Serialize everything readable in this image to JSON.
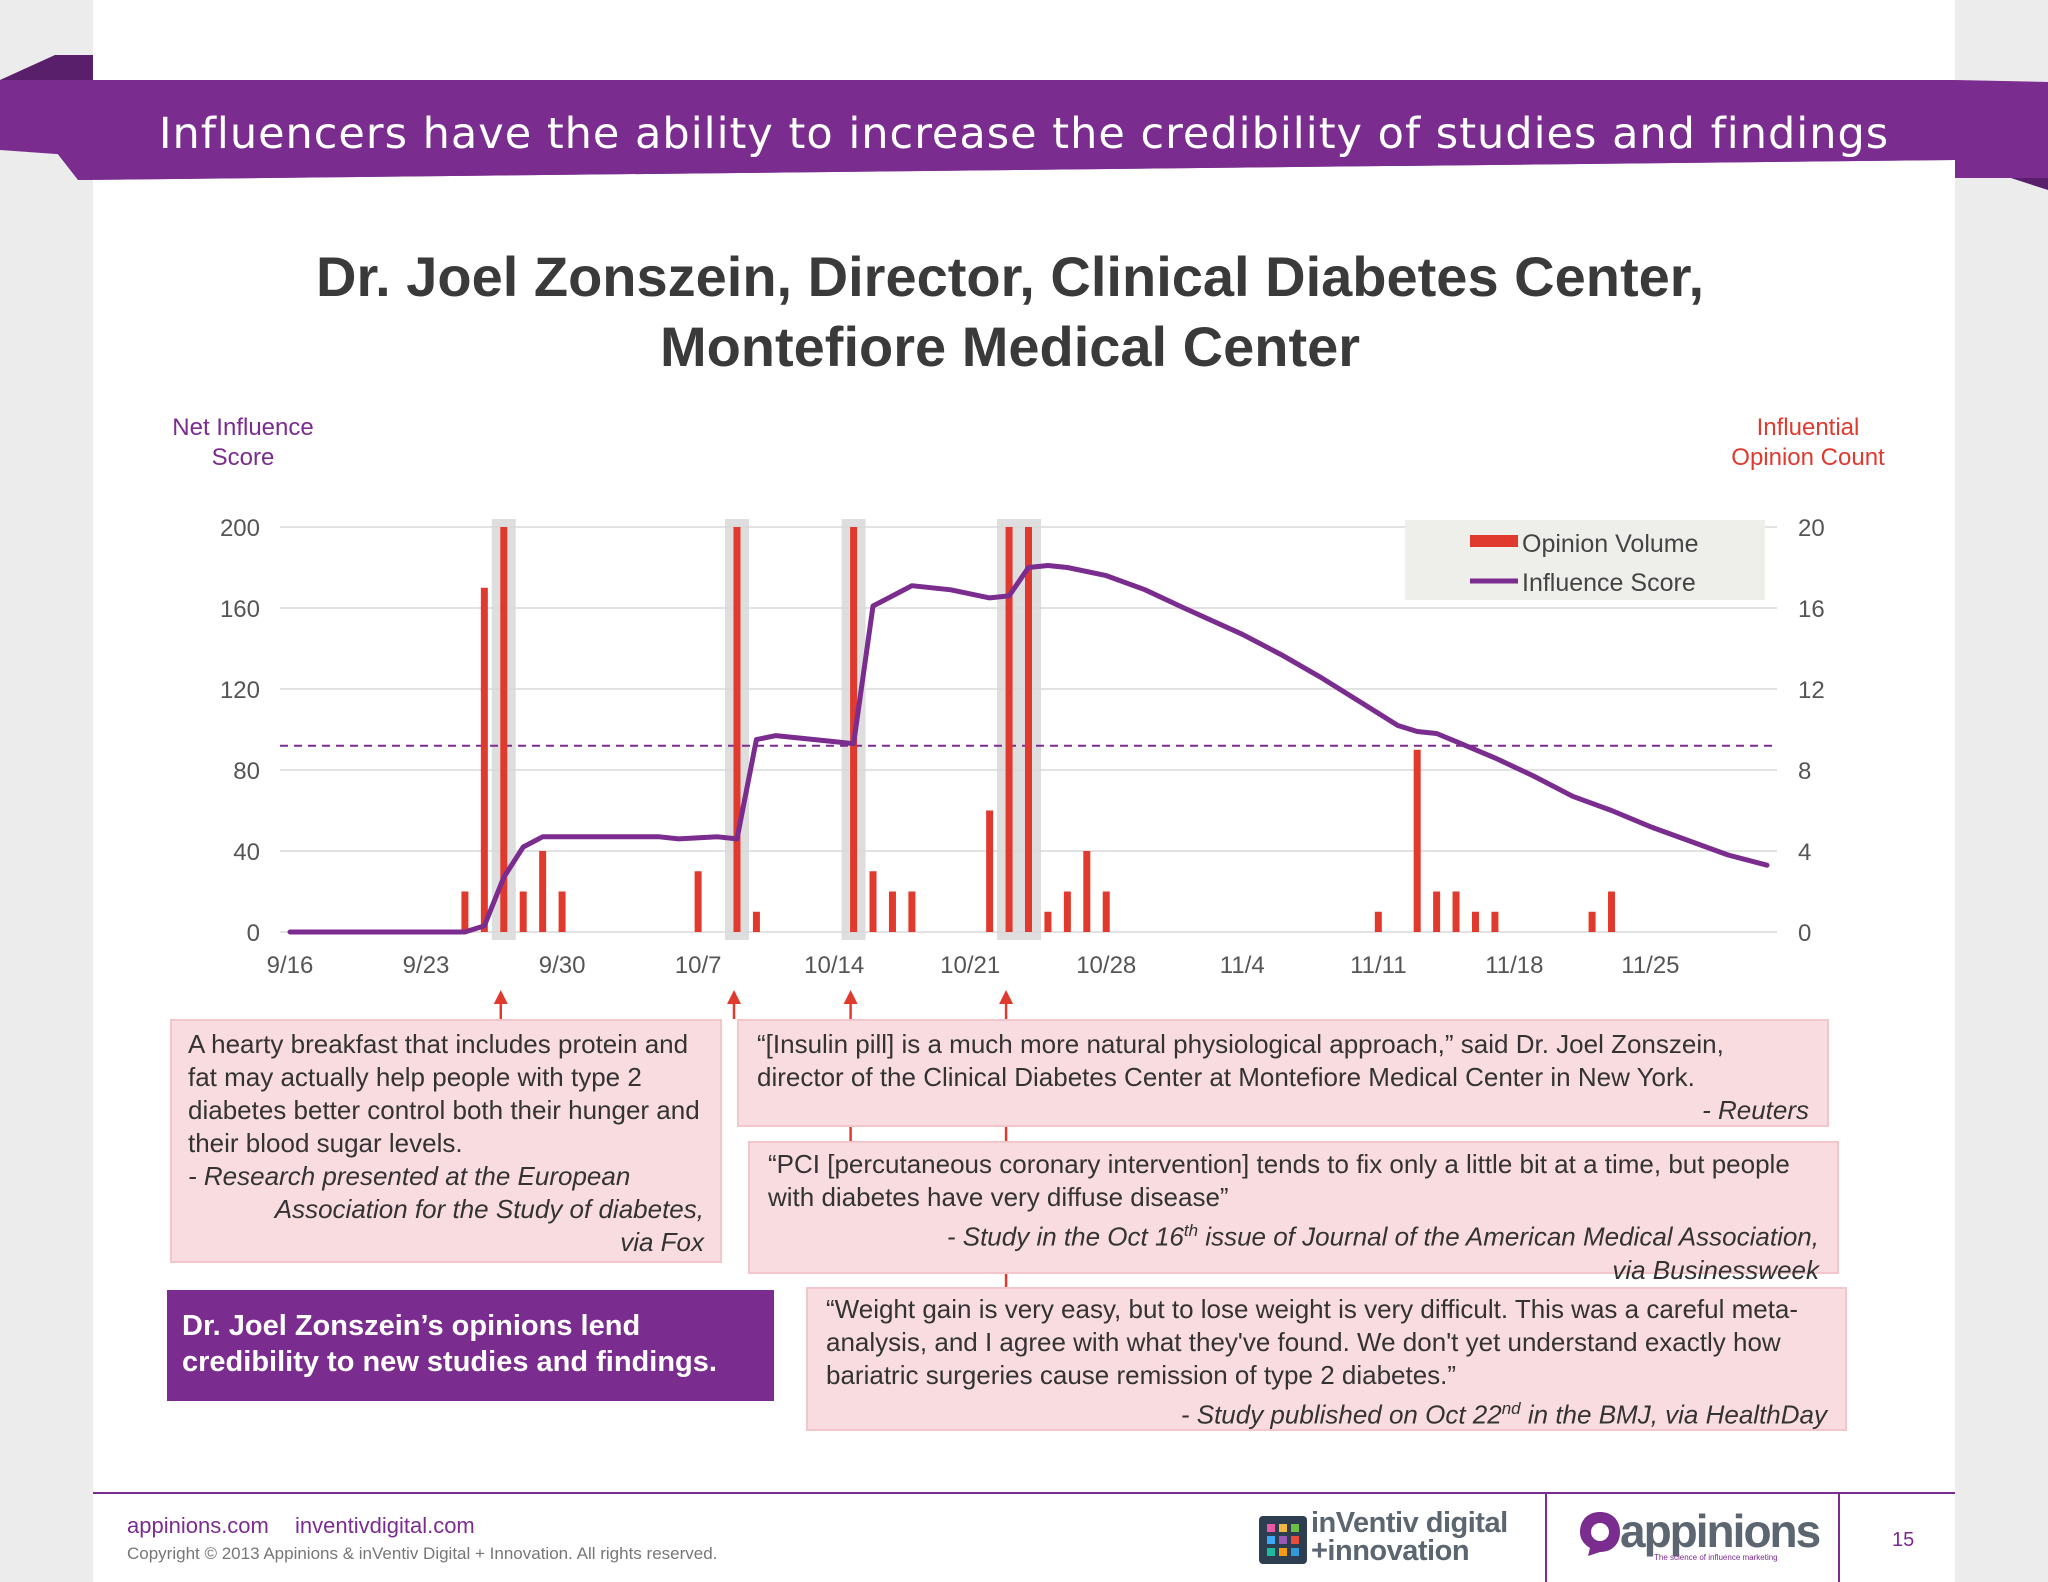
{
  "banner": {
    "text": "Influencers have the ability to increase the credibility of  studies and findings"
  },
  "chart_data": {
    "type": "bar+line",
    "title_line1": "Dr. Joel Zonszein, Director, Clinical Diabetes Center,",
    "title_line2": "Montefiore Medical Center",
    "y_left_label_line1": "Net Influence",
    "y_left_label_line2": "Score",
    "y_right_label_line1": "Influential",
    "y_right_label_line2": "Opinion Count",
    "y_left_ticks": [
      0,
      40,
      80,
      120,
      160,
      200
    ],
    "y_right_ticks": [
      0,
      4,
      8,
      12,
      16,
      20
    ],
    "ylim_left": [
      0,
      200
    ],
    "ylim_right": [
      0,
      20
    ],
    "x_ticks": [
      {
        "label": "9/16",
        "day": "2013-09-16"
      },
      {
        "label": "9/23",
        "day": "2013-09-23"
      },
      {
        "label": "9/30",
        "day": "2013-09-30"
      },
      {
        "label": "10/7",
        "day": "2013-10-07"
      },
      {
        "label": "10/14",
        "day": "2013-10-14"
      },
      {
        "label": "10/21",
        "day": "2013-10-21"
      },
      {
        "label": "10/28",
        "day": "2013-10-28"
      },
      {
        "label": "11/4",
        "day": "2013-11-04"
      },
      {
        "label": "11/11",
        "day": "2013-11-11"
      },
      {
        "label": "11/18",
        "day": "2013-11-18"
      },
      {
        "label": "11/25",
        "day": "2013-11-25"
      }
    ],
    "xlim": [
      "2013-09-16",
      "2013-12-01"
    ],
    "legend": {
      "position": "top-right",
      "items": [
        "Opinion Volume",
        "Influence Score"
      ]
    },
    "threshold_line": {
      "style": "dashed",
      "value": 92
    },
    "highlight_days": [
      "2013-09-27",
      "2013-10-09",
      "2013-10-15",
      "2013-10-23"
    ],
    "series": [
      {
        "name": "Opinion Volume",
        "axis": "right",
        "color": "#e03a2e",
        "type": "bar",
        "points": [
          [
            "2013-09-25",
            2
          ],
          [
            "2013-09-26",
            17
          ],
          [
            "2013-09-27",
            20
          ],
          [
            "2013-09-28",
            2
          ],
          [
            "2013-09-29",
            4
          ],
          [
            "2013-09-30",
            2
          ],
          [
            "2013-10-07",
            3
          ],
          [
            "2013-10-09",
            20
          ],
          [
            "2013-10-10",
            1
          ],
          [
            "2013-10-15",
            20
          ],
          [
            "2013-10-16",
            3
          ],
          [
            "2013-10-17",
            2
          ],
          [
            "2013-10-18",
            2
          ],
          [
            "2013-10-22",
            6
          ],
          [
            "2013-10-23",
            20
          ],
          [
            "2013-10-24",
            20
          ],
          [
            "2013-10-25",
            1
          ],
          [
            "2013-10-26",
            2
          ],
          [
            "2013-10-27",
            4
          ],
          [
            "2013-10-28",
            2
          ],
          [
            "2013-11-11",
            1
          ],
          [
            "2013-11-13",
            9
          ],
          [
            "2013-11-14",
            2
          ],
          [
            "2013-11-15",
            2
          ],
          [
            "2013-11-16",
            1
          ],
          [
            "2013-11-17",
            1
          ],
          [
            "2013-11-22",
            1
          ],
          [
            "2013-11-23",
            2
          ]
        ]
      },
      {
        "name": "Influence Score",
        "axis": "left",
        "color": "#7b2c8f",
        "type": "line",
        "points": [
          [
            "2013-09-16",
            0
          ],
          [
            "2013-09-25",
            0
          ],
          [
            "2013-09-26",
            3
          ],
          [
            "2013-09-27",
            27
          ],
          [
            "2013-09-28",
            42
          ],
          [
            "2013-09-29",
            47
          ],
          [
            "2013-09-30",
            47
          ],
          [
            "2013-10-01",
            47
          ],
          [
            "2013-10-03",
            47
          ],
          [
            "2013-10-05",
            47
          ],
          [
            "2013-10-06",
            46
          ],
          [
            "2013-10-08",
            47
          ],
          [
            "2013-10-09",
            46
          ],
          [
            "2013-10-10",
            95
          ],
          [
            "2013-10-11",
            97
          ],
          [
            "2013-10-12",
            96
          ],
          [
            "2013-10-14",
            94
          ],
          [
            "2013-10-15",
            93
          ],
          [
            "2013-10-16",
            161
          ],
          [
            "2013-10-17",
            166
          ],
          [
            "2013-10-18",
            171
          ],
          [
            "2013-10-20",
            169
          ],
          [
            "2013-10-22",
            165
          ],
          [
            "2013-10-23",
            166
          ],
          [
            "2013-10-24",
            180
          ],
          [
            "2013-10-25",
            181
          ],
          [
            "2013-10-26",
            180
          ],
          [
            "2013-10-28",
            176
          ],
          [
            "2013-10-30",
            169
          ],
          [
            "2013-11-01",
            160
          ],
          [
            "2013-11-04",
            147
          ],
          [
            "2013-11-06",
            137
          ],
          [
            "2013-11-08",
            126
          ],
          [
            "2013-11-10",
            114
          ],
          [
            "2013-11-12",
            102
          ],
          [
            "2013-11-13",
            99
          ],
          [
            "2013-11-14",
            98
          ],
          [
            "2013-11-15",
            94
          ],
          [
            "2013-11-17",
            86
          ],
          [
            "2013-11-19",
            77
          ],
          [
            "2013-11-21",
            67
          ],
          [
            "2013-11-23",
            60
          ],
          [
            "2013-11-25",
            52
          ],
          [
            "2013-11-27",
            45
          ],
          [
            "2013-11-29",
            38
          ],
          [
            "2013-12-01",
            33
          ]
        ]
      }
    ]
  },
  "callouts": {
    "c1": {
      "text": "A hearty breakfast that includes protein and fat may actually help people with type 2 diabetes better control both their hunger and their blood sugar levels.",
      "source_line1": "-   Research presented at the European",
      "source_line2": "Association for the Study of diabetes,",
      "source_line3": "via Fox"
    },
    "c2": {
      "text": "“[Insulin pill] is a much more natural physiological approach,” said Dr. Joel Zonszein, director of the Clinical Diabetes Center at Montefiore Medical Center in New York.",
      "source": "- Reuters"
    },
    "c3": {
      "text": "“PCI [percutaneous coronary intervention] tends to fix only a little bit at a time, but people with diabetes have very diffuse disease”",
      "source_pre": "- Study in the Oct 16",
      "source_sup": "th",
      "source_post": " issue of Journal of the American Medical Association,",
      "source_line2": "via Businessweek"
    },
    "c4": {
      "text": "“Weight gain is very easy, but to lose weight is very difficult. This was a careful meta-analysis, and I agree with what they've found. We don't yet understand exactly how bariatric surgeries cause remission of type 2 diabetes.”",
      "source_pre": "- Study published on Oct 22",
      "source_sup": "nd",
      "source_post": " in the BMJ, via HealthDay"
    }
  },
  "conclusion": {
    "text": "Dr. Joel Zonszein’s opinions lend credibility to new studies and findings."
  },
  "footer": {
    "link1": "appinions.com",
    "link2": "inventivdigital.com",
    "copyright": "Copyright © 2013 Appinions & inVentiv Digital + Innovation. All rights reserved.",
    "logo_inventiv_line1": "inVentiv digital",
    "logo_inventiv_line2": "+innovation",
    "logo_appinions": "appinions",
    "logo_appinions_tagline": "The science of influence marketing",
    "page_number": "15"
  },
  "colors": {
    "brand_purple": "#7b2c8f",
    "bar_red": "#e03a2e",
    "callout_pink": "#f9dcdf"
  }
}
